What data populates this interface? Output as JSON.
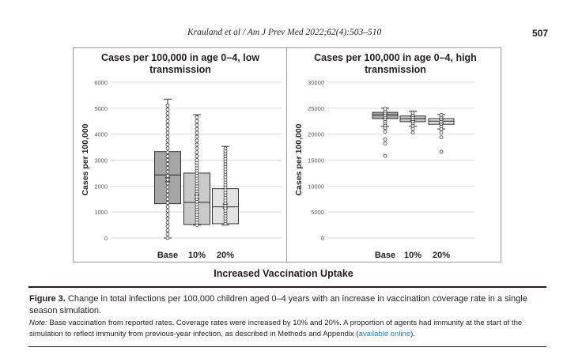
{
  "header": {
    "running_head": "Krauland et al / Am J Prev Med 2022;62(4):503–510",
    "page_number": "507"
  },
  "figure": {
    "x_axis_title": "Increased Vaccination Uptake",
    "caption_label": "Figure 3.",
    "caption_text": "Change in total infections per 100,000 children aged 0–4 years with an increase in vaccination coverage rate in a single season simulation.",
    "note_label": "Note:",
    "note_text": "Base vaccination from reported rates. Coverage rates were increased by 10% and 20%. A proportion of agents had immunity at the start of the simulation to reflect immunity from previous-year infection, as described in Methods and Appendix (",
    "note_link": "available online",
    "note_end": ")."
  },
  "chart_data": [
    {
      "type": "box",
      "title_line1": "Cases per 100,000 in age 0–4, low",
      "title_line2": "transmission",
      "ylabel": "Cases per 100,000",
      "ylim": [
        0,
        6000
      ],
      "yticks": [
        0,
        1000,
        2000,
        3000,
        4000,
        5000,
        6000
      ],
      "grid": true,
      "categories": [
        "Base",
        "10%",
        "20%"
      ],
      "fill_colors": [
        "#a6a6a6",
        "#c9c9c9",
        "#e2e2e2"
      ],
      "boxes": [
        {
          "min": 0,
          "q1": 1320,
          "median": 2430,
          "mean": 2250,
          "q3": 3330,
          "max": 5350
        },
        {
          "min": 500,
          "q1": 520,
          "median": 1370,
          "mean": 1580,
          "q3": 2500,
          "max": 4750
        },
        {
          "min": 500,
          "q1": 550,
          "median": 1200,
          "mean": 1230,
          "q3": 1900,
          "max": 3530
        }
      ],
      "points": [
        [
          0,
          150,
          300,
          450,
          600,
          750,
          900,
          1050,
          1200,
          1350,
          1500,
          1650,
          1800,
          1950,
          2100,
          2250,
          2400,
          2550,
          2700,
          2850,
          3000,
          3150,
          3300,
          3450,
          3600,
          3750,
          3900,
          4050,
          4200,
          4350,
          4500,
          4650,
          4800,
          4950,
          5100
        ],
        [
          500,
          600,
          700,
          800,
          900,
          1000,
          1100,
          1200,
          1300,
          1400,
          1500,
          1600,
          1700,
          1800,
          1900,
          2000,
          2100,
          2200,
          2300,
          2400,
          2500,
          2600,
          2700,
          2800,
          2900,
          3000,
          3150,
          3300,
          3450,
          3600,
          3750,
          3900,
          4050,
          4200,
          4350,
          4500,
          4650
        ],
        [
          550,
          650,
          750,
          850,
          950,
          1050,
          1150,
          1250,
          1350,
          1450,
          1550,
          1650,
          1750,
          1850,
          1950,
          2050,
          2150,
          2250,
          2350,
          2450,
          2550,
          2650,
          2750,
          2850,
          2950,
          3050,
          3150,
          3250,
          3350,
          3450
        ]
      ]
    },
    {
      "type": "box",
      "title_line1": "Cases per 100,000 in age 0–4, high",
      "title_line2": "transmission",
      "ylabel": "Cases per 100,000",
      "ylim": [
        0,
        30000
      ],
      "yticks": [
        0,
        5000,
        10000,
        15000,
        20000,
        25000,
        30000
      ],
      "grid": true,
      "categories": [
        "Base",
        "10%",
        "20%"
      ],
      "fill_colors": [
        "#a6a6a6",
        "#c9c9c9",
        "#e2e2e2"
      ],
      "boxes": [
        {
          "min": 21500,
          "q1": 23000,
          "median": 23700,
          "mean": 23500,
          "q3": 24200,
          "max": 25000
        },
        {
          "min": 21500,
          "q1": 22400,
          "median": 23000,
          "mean": 23000,
          "q3": 23500,
          "max": 24400
        },
        {
          "min": 21000,
          "q1": 21900,
          "median": 22500,
          "mean": 22500,
          "q3": 23000,
          "max": 23800
        }
      ],
      "points": [
        [
          15800,
          18200,
          19000,
          20500,
          21200,
          21700,
          22100,
          22500,
          22900,
          23300,
          23700,
          24100,
          24500,
          24900
        ],
        [
          20300,
          21000,
          21600,
          22100,
          22500,
          22900,
          23300,
          23700,
          24100
        ],
        [
          16600,
          19400,
          20300,
          21000,
          21500,
          22000,
          22400,
          22900,
          23300,
          23700
        ]
      ]
    }
  ]
}
